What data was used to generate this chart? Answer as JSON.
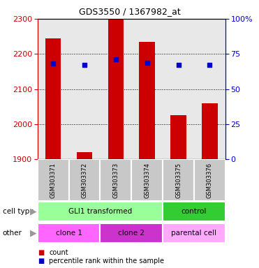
{
  "title": "GDS3550 / 1367982_at",
  "samples": [
    "GSM303371",
    "GSM303372",
    "GSM303373",
    "GSM303374",
    "GSM303375",
    "GSM303376"
  ],
  "bar_values": [
    2245,
    1920,
    2300,
    2235,
    2025,
    2060
  ],
  "bar_base": 1900,
  "dot_values": [
    2172,
    2168,
    2185,
    2175,
    2168,
    2168
  ],
  "ylim_left": [
    1900,
    2300
  ],
  "ylim_right": [
    0,
    100
  ],
  "yticks_left": [
    1900,
    2000,
    2100,
    2200,
    2300
  ],
  "yticks_right": [
    0,
    25,
    50,
    75,
    100
  ],
  "ytick_labels_right": [
    "0",
    "25",
    "50",
    "75",
    "100%"
  ],
  "bar_color": "#cc0000",
  "dot_color": "#0000cc",
  "cell_type_groups": [
    {
      "label": "GLI1 transformed",
      "start": 0,
      "end": 4,
      "color": "#99ff99"
    },
    {
      "label": "control",
      "start": 4,
      "end": 6,
      "color": "#33cc33"
    }
  ],
  "other_groups": [
    {
      "label": "clone 1",
      "start": 0,
      "end": 2,
      "color": "#ff66ff"
    },
    {
      "label": "clone 2",
      "start": 2,
      "end": 4,
      "color": "#cc33cc"
    },
    {
      "label": "parental cell",
      "start": 4,
      "end": 6,
      "color": "#ffaaff"
    }
  ],
  "legend_count_color": "#cc0000",
  "legend_dot_color": "#0000cc",
  "bg_color": "#ffffff",
  "left_axis_color": "#cc0000",
  "right_axis_color": "#0000cc",
  "sample_bg": "#c8c8c8",
  "chart_bg": "#e8e8e8"
}
